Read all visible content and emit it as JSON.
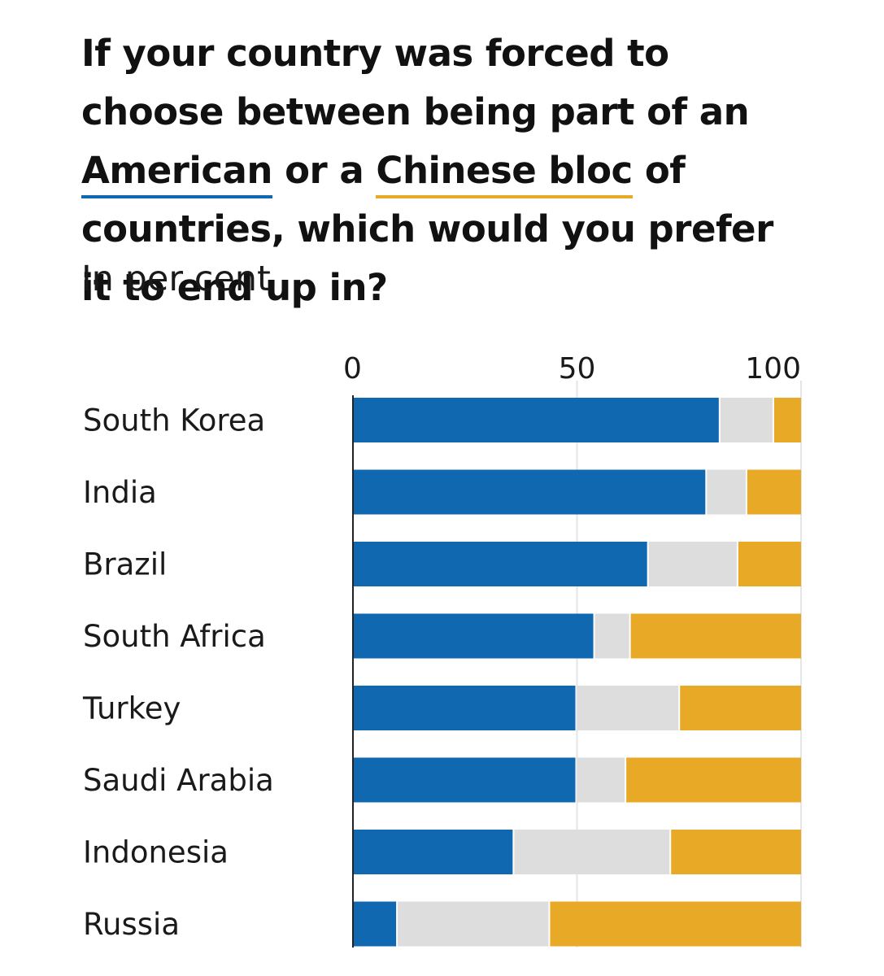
{
  "title": {
    "part1": "If your country was forced to choose between being part of an ",
    "american": "American",
    "part2": " or a ",
    "chinese": "Chinese bloc",
    "part3": " of countries, which would you prefer it to end up in?"
  },
  "subtitle": "In per cent",
  "colors": {
    "american": "#0f68b0",
    "neutral": "#dddddd",
    "chinese": "#e8aa26",
    "grid": "#e5e5e5",
    "axis": "#222222"
  },
  "chart_data": {
    "type": "bar",
    "orientation": "horizontal",
    "stacked": true,
    "categories": [
      "South Korea",
      "India",
      "Brazil",
      "South Africa",
      "Turkey",
      "Saudi Arabia",
      "Indonesia",
      "Russia"
    ],
    "series": [
      {
        "name": "American",
        "color": "#0f68b0",
        "values": [
          82,
          79,
          66,
          54,
          50,
          50,
          36,
          10
        ]
      },
      {
        "name": "",
        "color": "#dddddd",
        "values": [
          12,
          9,
          20,
          8,
          23,
          11,
          35,
          34
        ]
      },
      {
        "name": "Chinese bloc",
        "color": "#e8aa26",
        "values": [
          6,
          12,
          14,
          38,
          27,
          39,
          29,
          56
        ]
      }
    ],
    "xticks": [
      "0",
      "50",
      "100"
    ],
    "xtick_values": [
      0,
      50,
      100
    ],
    "xlim": [
      0,
      100
    ],
    "grid": true
  }
}
